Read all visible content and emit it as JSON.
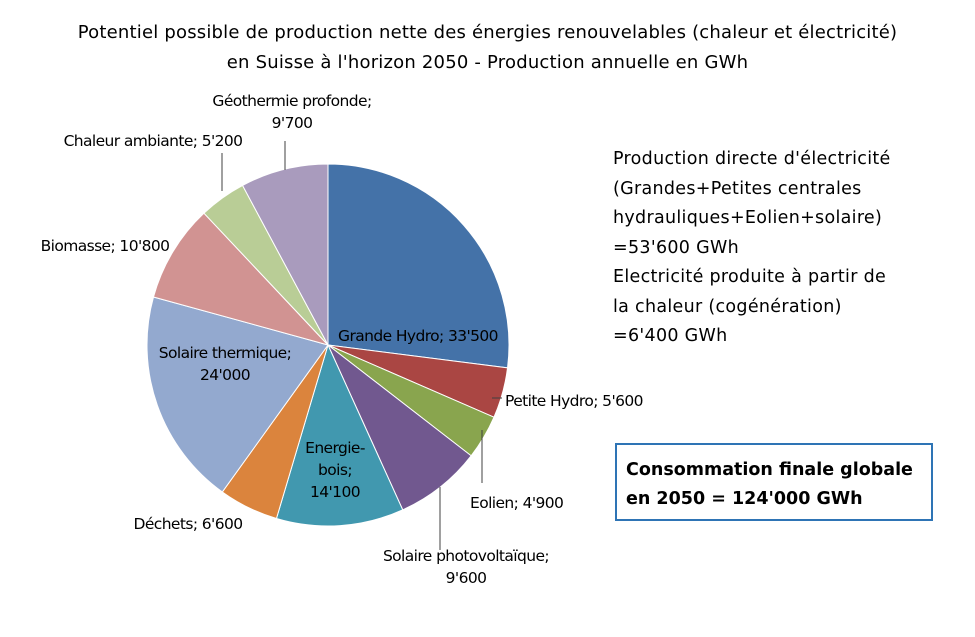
{
  "chart_data": {
    "type": "pie",
    "title_lines": [
      "Potentiel possible de production nette des énergies renouvelables (chaleur et électricité)",
      "en Suisse à l'horizon 2050 - Production annuelle en GWh"
    ],
    "slices": [
      {
        "name": "Grande Hydro",
        "value": 33500,
        "label_lines": [
          "Grande Hydro; 33'500"
        ],
        "color": "#4472a8"
      },
      {
        "name": "Petite Hydro",
        "value": 5600,
        "label_lines": [
          "Petite Hydro; 5'600"
        ],
        "color": "#aa4643"
      },
      {
        "name": "Eolien",
        "value": 4900,
        "label_lines": [
          "Eolien; 4'900"
        ],
        "color": "#89a54e"
      },
      {
        "name": "Solaire photovoltaïque",
        "value": 9600,
        "label_lines": [
          "Solaire photovoltaïque;",
          "9'600"
        ],
        "color": "#71588f"
      },
      {
        "name": "Energie-bois",
        "value": 14100,
        "label_lines": [
          "Energie-",
          "bois;",
          "14'100"
        ],
        "color": "#4198af"
      },
      {
        "name": "Déchets",
        "value": 6600,
        "label_lines": [
          "Déchets; 6'600"
        ],
        "color": "#db843d"
      },
      {
        "name": "Solaire thermique",
        "value": 24000,
        "label_lines": [
          "Solaire thermique;",
          "24'000"
        ],
        "color": "#93a9cf"
      },
      {
        "name": "Biomasse",
        "value": 10800,
        "label_lines": [
          "Biomasse; 10'800"
        ],
        "color": "#d19392"
      },
      {
        "name": "Chaleur ambiante",
        "value": 5200,
        "label_lines": [
          "Chaleur ambiante; 5'200"
        ],
        "color": "#b9cd96"
      },
      {
        "name": "Géothermie profonde",
        "value": 9700,
        "label_lines": [
          "Géothermie profonde;",
          "9'700"
        ],
        "color": "#a99bbd"
      }
    ]
  },
  "annotation": {
    "lines": [
      "Production directe d'électricité",
      "(Grandes+Petites centrales",
      "hydrauliques+Eolien+solaire)",
      "=53'600 GWh",
      "Electricité produite à partir de",
      "la chaleur (cogénération)",
      "=6'400 GWh"
    ]
  },
  "total_box": {
    "lines": [
      "Consommation finale globale",
      "en 2050 = 124'000 GWh"
    ]
  }
}
